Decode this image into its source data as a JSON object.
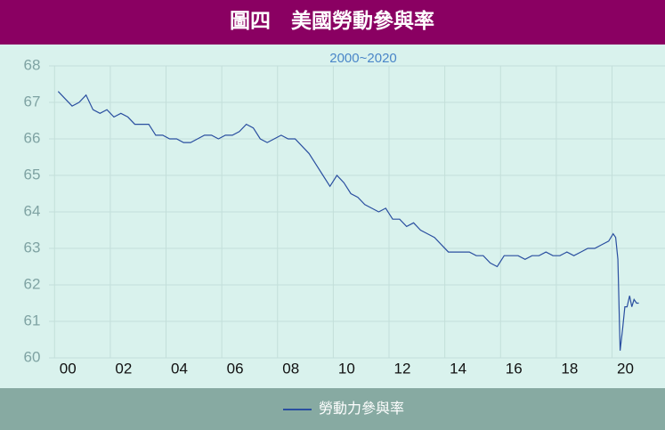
{
  "chart_data": {
    "type": "line",
    "title": "圖四　美國勞動參與率",
    "subtitle": "2000~2020",
    "x": [
      2000.13,
      2000.38,
      2000.63,
      2000.88,
      2001.13,
      2001.38,
      2001.63,
      2001.88,
      2002.13,
      2002.38,
      2002.63,
      2002.88,
      2003.13,
      2003.38,
      2003.63,
      2003.88,
      2004.13,
      2004.38,
      2004.63,
      2004.88,
      2005.13,
      2005.38,
      2005.63,
      2005.88,
      2006.13,
      2006.38,
      2006.63,
      2006.88,
      2007.13,
      2007.38,
      2007.63,
      2007.88,
      2008.13,
      2008.38,
      2008.63,
      2008.88,
      2009.13,
      2009.38,
      2009.63,
      2009.88,
      2010.13,
      2010.38,
      2010.63,
      2010.88,
      2011.13,
      2011.38,
      2011.63,
      2011.88,
      2012.13,
      2012.38,
      2012.63,
      2012.88,
      2013.13,
      2013.38,
      2013.63,
      2013.88,
      2014.13,
      2014.38,
      2014.63,
      2014.88,
      2015.13,
      2015.38,
      2015.63,
      2015.88,
      2016.13,
      2016.38,
      2016.63,
      2016.88,
      2017.13,
      2017.38,
      2017.63,
      2017.88,
      2018.13,
      2018.38,
      2018.63,
      2018.88,
      2019.13,
      2019.38,
      2019.63,
      2019.88,
      2020.04,
      2020.13,
      2020.21,
      2020.29,
      2020.38,
      2020.46,
      2020.54,
      2020.63,
      2020.71,
      2020.79,
      2020.88,
      2020.96
    ],
    "series": [
      {
        "name": "勞動力參與率",
        "color": "#2a4fa0",
        "values": [
          67.3,
          67.1,
          66.9,
          67.0,
          67.2,
          66.8,
          66.7,
          66.8,
          66.6,
          66.7,
          66.6,
          66.4,
          66.4,
          66.4,
          66.1,
          66.1,
          66.0,
          66.0,
          65.9,
          65.9,
          66.0,
          66.1,
          66.1,
          66.0,
          66.1,
          66.1,
          66.2,
          66.4,
          66.3,
          66.0,
          65.9,
          66.0,
          66.1,
          66.0,
          66.0,
          65.8,
          65.6,
          65.3,
          65.0,
          64.7,
          65.0,
          64.8,
          64.5,
          64.4,
          64.2,
          64.1,
          64.0,
          64.1,
          63.8,
          63.8,
          63.6,
          63.7,
          63.5,
          63.4,
          63.3,
          63.1,
          62.9,
          62.9,
          62.9,
          62.9,
          62.8,
          62.8,
          62.6,
          62.5,
          62.8,
          62.8,
          62.8,
          62.7,
          62.8,
          62.8,
          62.9,
          62.8,
          62.8,
          62.9,
          62.8,
          62.9,
          63.0,
          63.0,
          63.1,
          63.2,
          63.4,
          63.3,
          62.7,
          60.2,
          60.8,
          61.4,
          61.4,
          61.7,
          61.4,
          61.6,
          61.5,
          61.5
        ]
      }
    ],
    "xlim": [
      1999.8,
      2021.9
    ],
    "xticks": [
      {
        "value": 2000,
        "label": "00"
      },
      {
        "value": 2002,
        "label": "02"
      },
      {
        "value": 2004,
        "label": "04"
      },
      {
        "value": 2006,
        "label": "06"
      },
      {
        "value": 2008,
        "label": "08"
      },
      {
        "value": 2010,
        "label": "10"
      },
      {
        "value": 2012,
        "label": "12"
      },
      {
        "value": 2014,
        "label": "14"
      },
      {
        "value": 2016,
        "label": "16"
      },
      {
        "value": 2018,
        "label": "18"
      },
      {
        "value": 2020,
        "label": "20"
      }
    ],
    "ylim": [
      60,
      68
    ],
    "yticks": [
      60,
      61,
      62,
      63,
      64,
      65,
      66,
      67,
      68
    ],
    "grid": true
  }
}
